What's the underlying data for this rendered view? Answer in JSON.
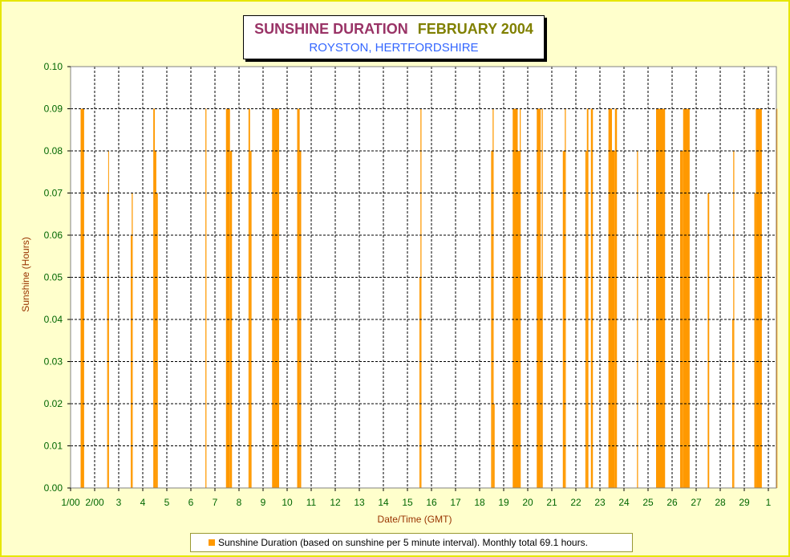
{
  "title": {
    "main": "SUNSHINE DURATION",
    "month": "FEBRUARY 2004",
    "subtitle": "ROYSTON, HERTFORDSHIRE"
  },
  "legend": {
    "label": "Sunshine Duration (based on sunshine per 5 minute interval). Monthly total 69.1 hours."
  },
  "colors": {
    "bar": "#ff9900",
    "plot_bg": "#ffffff",
    "tick_label": "#006600",
    "axis_title": "#993300",
    "grid": "#000000"
  },
  "chart_data": {
    "type": "bar",
    "title": "SUNSHINE DURATION   FEBRUARY 2004",
    "subtitle": "ROYSTON, HERTFORDSHIRE",
    "xlabel": "Date/Time (GMT)",
    "ylabel": "Sunshine (Hours)",
    "ylim": [
      0,
      0.1
    ],
    "xlim": [
      "2004-02-01 00:00",
      "2004-03-01 09:00"
    ],
    "grid": true,
    "legend_position": "bottom",
    "y_ticks": [
      "0.00",
      "0.01",
      "0.02",
      "0.03",
      "0.04",
      "0.05",
      "0.06",
      "0.07",
      "0.08",
      "0.09",
      "0.10"
    ],
    "x_tick_labels": [
      "1/00",
      "2/00",
      "3",
      "4",
      "5",
      "6",
      "7",
      "8",
      "9",
      "10",
      "11",
      "12",
      "13",
      "14",
      "15",
      "16",
      "17",
      "18",
      "19",
      "20",
      "21",
      "22",
      "23",
      "24",
      "25",
      "26",
      "27",
      "28",
      "29",
      "1"
    ],
    "series": [
      {
        "name": "Sunshine Duration (based on sunshine per 5 minute interval). Monthly total 69.1 hours.",
        "description": "spans of sunshine, each span = [start, end, value in hours per 5 minute interval]",
        "spans": [
          [
            "2004-02-01 10:00",
            "2004-02-01 13:30",
            0.09
          ],
          [
            "2004-02-02 12:30",
            "2004-02-02 13:30",
            0.07
          ],
          [
            "2004-02-02 13:30",
            "2004-02-02 14:00",
            0.08
          ],
          [
            "2004-02-03 12:00",
            "2004-02-03 13:00",
            0.06
          ],
          [
            "2004-02-03 13:00",
            "2004-02-03 14:00",
            0.07
          ],
          [
            "2004-02-04 10:30",
            "2004-02-04 12:00",
            0.09
          ],
          [
            "2004-02-04 12:00",
            "2004-02-04 13:30",
            0.08
          ],
          [
            "2004-02-04 13:30",
            "2004-02-04 15:00",
            0.07
          ],
          [
            "2004-02-06 14:30",
            "2004-02-06 15:30",
            0.09
          ],
          [
            "2004-02-07 11:00",
            "2004-02-07 15:00",
            0.09
          ],
          [
            "2004-02-07 15:00",
            "2004-02-07 17:00",
            0.08
          ],
          [
            "2004-02-08 09:30",
            "2004-02-08 11:00",
            0.09
          ],
          [
            "2004-02-08 11:00",
            "2004-02-08 12:30",
            0.08
          ],
          [
            "2004-02-09 09:00",
            "2004-02-09 16:00",
            0.09
          ],
          [
            "2004-02-10 10:00",
            "2004-02-10 12:30",
            0.09
          ],
          [
            "2004-02-10 12:30",
            "2004-02-10 14:00",
            0.08
          ],
          [
            "2004-02-15 12:00",
            "2004-02-15 13:00",
            0.05
          ],
          [
            "2004-02-15 13:00",
            "2004-02-15 14:00",
            0.09
          ],
          [
            "2004-02-18 11:30",
            "2004-02-18 13:00",
            0.08
          ],
          [
            "2004-02-18 13:00",
            "2004-02-18 14:00",
            0.09
          ],
          [
            "2004-02-18 14:00",
            "2004-02-18 15:00",
            0.02
          ],
          [
            "2004-02-19 09:00",
            "2004-02-19 14:00",
            0.09
          ],
          [
            "2004-02-19 14:00",
            "2004-02-19 16:00",
            0.08
          ],
          [
            "2004-02-19 16:00",
            "2004-02-19 17:00",
            0.09
          ],
          [
            "2004-02-20 09:00",
            "2004-02-20 13:00",
            0.09
          ],
          [
            "2004-02-20 13:00",
            "2004-02-20 14:00",
            0.05
          ],
          [
            "2004-02-20 14:00",
            "2004-02-20 15:00",
            0.09
          ],
          [
            "2004-02-21 11:00",
            "2004-02-21 13:00",
            0.08
          ],
          [
            "2004-02-21 13:00",
            "2004-02-21 14:00",
            0.09
          ],
          [
            "2004-02-22 09:30",
            "2004-02-22 11:00",
            0.08
          ],
          [
            "2004-02-22 11:00",
            "2004-02-22 12:30",
            0.09
          ],
          [
            "2004-02-22 15:00",
            "2004-02-22 17:00",
            0.09
          ],
          [
            "2004-02-23 08:30",
            "2004-02-23 12:00",
            0.09
          ],
          [
            "2004-02-23 12:00",
            "2004-02-23 15:00",
            0.08
          ],
          [
            "2004-02-23 15:00",
            "2004-02-23 17:00",
            0.09
          ],
          [
            "2004-02-24 13:00",
            "2004-02-24 14:00",
            0.08
          ],
          [
            "2004-02-25 08:00",
            "2004-02-25 17:00",
            0.09
          ],
          [
            "2004-02-26 08:00",
            "2004-02-26 11:00",
            0.08
          ],
          [
            "2004-02-26 11:00",
            "2004-02-26 17:30",
            0.09
          ],
          [
            "2004-02-27 11:30",
            "2004-02-27 13:00",
            0.07
          ],
          [
            "2004-02-28 12:00",
            "2004-02-28 13:00",
            0.04
          ],
          [
            "2004-02-28 13:00",
            "2004-02-28 14:00",
            0.08
          ],
          [
            "2004-02-29 10:00",
            "2004-02-29 11:30",
            0.07
          ],
          [
            "2004-02-29 11:30",
            "2004-02-29 17:30",
            0.09
          ],
          [
            "2004-03-01 07:30",
            "2004-03-01 09:00",
            0.09
          ]
        ]
      }
    ]
  }
}
